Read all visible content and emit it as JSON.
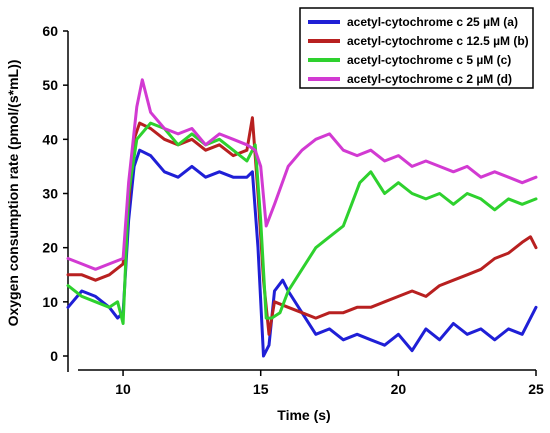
{
  "chart_data": {
    "type": "line",
    "title": "",
    "xlabel": "Time (s)",
    "ylabel": "Oxygen consumption rate (pmol/(s*mL))",
    "xlim": [
      8,
      25
    ],
    "ylim": [
      0,
      60
    ],
    "xticks": [
      10,
      15,
      20,
      25
    ],
    "yticks": [
      0,
      10,
      20,
      30,
      40,
      50,
      60
    ],
    "grid": false,
    "legend_position": "top-right",
    "series": [
      {
        "name": "acetyl-cytochrome c 25 µM (a)",
        "color": "#1f1fd6",
        "x": [
          8,
          8.5,
          9,
          9.5,
          9.8,
          10,
          10.2,
          10.4,
          10.6,
          11,
          11.5,
          12,
          12.5,
          13,
          13.5,
          14,
          14.5,
          14.7,
          14.9,
          15.1,
          15.3,
          15.5,
          15.8,
          16,
          16.5,
          17,
          17.5,
          18,
          18.5,
          19,
          19.5,
          20,
          20.5,
          21,
          21.5,
          22,
          22.5,
          23,
          23.5,
          24,
          24.5,
          25
        ],
        "y": [
          9,
          12,
          11,
          9,
          7,
          8,
          25,
          35,
          38,
          37,
          34,
          33,
          35,
          33,
          34,
          33,
          33,
          34,
          20,
          0,
          2,
          12,
          14,
          12,
          8,
          4,
          5,
          3,
          4,
          3,
          2,
          4,
          1,
          5,
          3,
          6,
          4,
          5,
          3,
          5,
          4,
          9
        ]
      },
      {
        "name": "acetyl-cytochrome c 12.5 µM (b)",
        "color": "#b82020",
        "x": [
          8,
          8.5,
          9,
          9.5,
          10,
          10.2,
          10.4,
          10.6,
          11,
          11.5,
          12,
          12.5,
          13,
          13.5,
          14,
          14.5,
          14.7,
          14.9,
          15.1,
          15.3,
          15.5,
          16,
          16.5,
          17,
          17.5,
          18,
          18.5,
          19,
          19.5,
          20,
          20.5,
          21,
          21.5,
          22,
          22.5,
          23,
          23.5,
          24,
          24.5,
          24.8,
          25
        ],
        "y": [
          15,
          15,
          14,
          15,
          17,
          28,
          40,
          43,
          42,
          40,
          39,
          40,
          38,
          39,
          37,
          38,
          44,
          30,
          14,
          4,
          10,
          9,
          8,
          7,
          8,
          8,
          9,
          9,
          10,
          11,
          12,
          11,
          13,
          14,
          15,
          16,
          18,
          19,
          21,
          22,
          20
        ]
      },
      {
        "name": "acetyl-cytochrome c 5 µM (c)",
        "color": "#2ed12e",
        "x": [
          8,
          8.5,
          9,
          9.5,
          9.8,
          10,
          10.2,
          10.5,
          11,
          11.5,
          12,
          12.5,
          13,
          13.5,
          14,
          14.5,
          14.8,
          15,
          15.2,
          15.4,
          15.7,
          16,
          16.5,
          17,
          17.5,
          18,
          18.3,
          18.6,
          19,
          19.5,
          20,
          20.5,
          21,
          21.5,
          22,
          22.5,
          23,
          23.5,
          24,
          24.5,
          25
        ],
        "y": [
          13,
          11,
          10,
          9,
          10,
          6,
          30,
          40,
          43,
          42,
          39,
          41,
          39,
          40,
          38,
          36,
          39,
          25,
          7,
          7,
          8,
          12,
          16,
          20,
          22,
          24,
          28,
          32,
          34,
          30,
          32,
          30,
          29,
          30,
          28,
          30,
          29,
          27,
          29,
          28,
          29
        ]
      },
      {
        "name": "acetyl-cytochrome c 2 µM (d)",
        "color": "#d23ad2",
        "x": [
          8,
          8.5,
          9,
          9.5,
          10,
          10.2,
          10.5,
          10.7,
          11,
          11.5,
          12,
          12.5,
          13,
          13.5,
          14,
          14.5,
          14.8,
          15,
          15.2,
          15.5,
          16,
          16.5,
          17,
          17.5,
          18,
          18.5,
          19,
          19.5,
          20,
          20.5,
          21,
          21.5,
          22,
          22.5,
          23,
          23.5,
          24,
          24.5,
          25
        ],
        "y": [
          18,
          17,
          16,
          17,
          18,
          32,
          46,
          51,
          45,
          42,
          41,
          42,
          39,
          41,
          40,
          39,
          38,
          35,
          24,
          28,
          35,
          38,
          40,
          41,
          38,
          37,
          38,
          36,
          37,
          35,
          36,
          35,
          34,
          35,
          33,
          34,
          33,
          32,
          33
        ]
      }
    ]
  }
}
